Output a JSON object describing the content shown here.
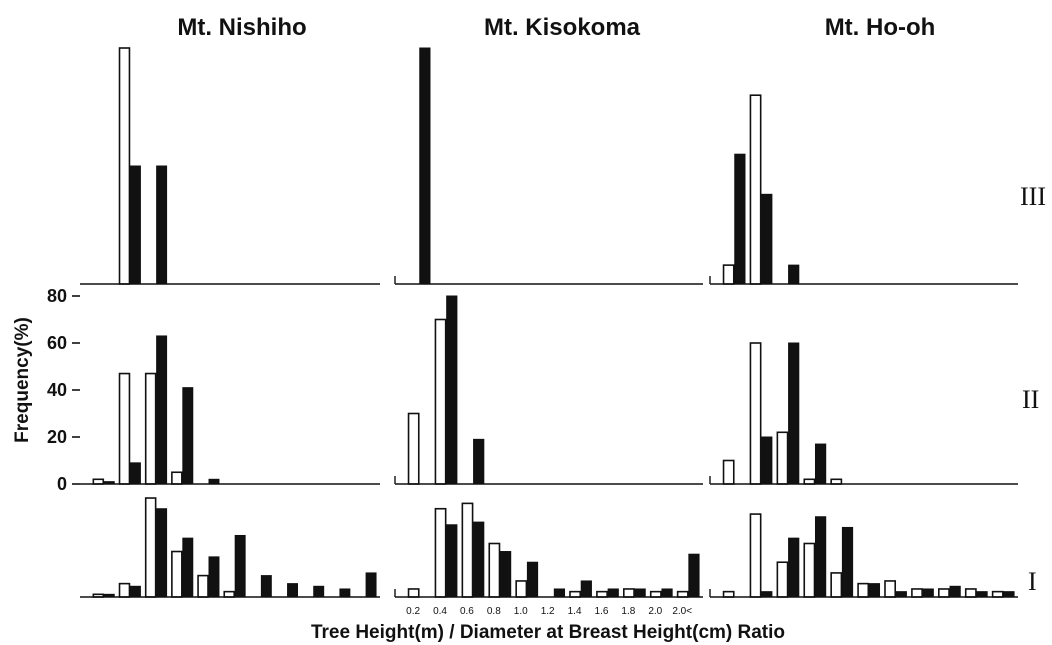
{
  "chart_data": {
    "type": "bar",
    "columns": [
      "Mt. Nishiho",
      "Mt. Kisokoma",
      "Mt. Ho-oh"
    ],
    "rows": [
      "III",
      "II",
      "I"
    ],
    "ylabel": "Frequency(%)",
    "xlabel": "Tree Height(m) / Diameter at Breast Height(cm) Ratio",
    "yticks": [
      0,
      20,
      40,
      60,
      80
    ],
    "ylim": [
      0,
      80
    ],
    "x_tick_labels": [
      "0.2",
      "0.4",
      "0.6",
      "0.8",
      "1.0",
      "1.2",
      "1.4",
      "1.6",
      "1.8",
      "2.0",
      "2.0<"
    ],
    "bin_count": 11,
    "series_styles": [
      "open",
      "solid"
    ],
    "panels": [
      {
        "column": "Mt. Nishiho",
        "row": "III",
        "open": [
          0,
          100,
          0,
          0,
          0,
          0,
          0,
          0,
          0,
          0,
          0
        ],
        "solid": [
          0,
          50,
          50,
          0,
          0,
          0,
          0,
          0,
          0,
          0,
          0
        ]
      },
      {
        "column": "Mt. Kisokoma",
        "row": "III",
        "open": [
          0,
          0,
          0,
          0,
          0,
          0,
          0,
          0,
          0,
          0,
          0
        ],
        "solid": [
          100,
          0,
          0,
          0,
          0,
          0,
          0,
          0,
          0,
          0,
          0
        ]
      },
      {
        "column": "Mt. Ho-oh",
        "row": "III",
        "open": [
          8,
          80,
          0,
          0,
          0,
          0,
          0,
          0,
          0,
          0,
          0
        ],
        "solid": [
          55,
          38,
          8,
          0,
          0,
          0,
          0,
          0,
          0,
          0,
          0
        ]
      },
      {
        "column": "Mt. Nishiho",
        "row": "II",
        "open": [
          2,
          47,
          47,
          5,
          0,
          0,
          0,
          0,
          0,
          0,
          0
        ],
        "solid": [
          1,
          9,
          63,
          41,
          2,
          0,
          0,
          0,
          0,
          0,
          0
        ]
      },
      {
        "column": "Mt. Kisokoma",
        "row": "II",
        "open": [
          30,
          70,
          0,
          0,
          0,
          0,
          0,
          0,
          0,
          0,
          0
        ],
        "solid": [
          0,
          80,
          19,
          0,
          0,
          0,
          0,
          0,
          0,
          0,
          0
        ]
      },
      {
        "column": "Mt. Ho-oh",
        "row": "II",
        "open": [
          10,
          60,
          22,
          2,
          2,
          0,
          0,
          0,
          0,
          0,
          0
        ],
        "solid": [
          0,
          20,
          60,
          17,
          0,
          0,
          0,
          0,
          0,
          0,
          0
        ]
      },
      {
        "column": "Mt. Nishiho",
        "row": "I",
        "open": [
          1,
          5,
          37,
          17,
          8,
          2,
          0,
          0,
          0,
          0,
          0
        ],
        "solid": [
          1,
          4,
          33,
          22,
          15,
          23,
          8,
          5,
          4,
          3,
          9
        ]
      },
      {
        "column": "Mt. Kisokoma",
        "row": "I",
        "open": [
          3,
          33,
          35,
          20,
          6,
          0,
          2,
          2,
          3,
          2,
          2
        ],
        "solid": [
          0,
          27,
          28,
          17,
          13,
          3,
          6,
          3,
          3,
          3,
          16
        ]
      },
      {
        "column": "Mt. Ho-oh",
        "row": "I",
        "open": [
          2,
          31,
          13,
          20,
          9,
          5,
          6,
          3,
          3,
          3,
          2
        ],
        "solid": [
          0,
          2,
          22,
          30,
          26,
          5,
          2,
          3,
          4,
          2,
          2
        ]
      }
    ]
  }
}
